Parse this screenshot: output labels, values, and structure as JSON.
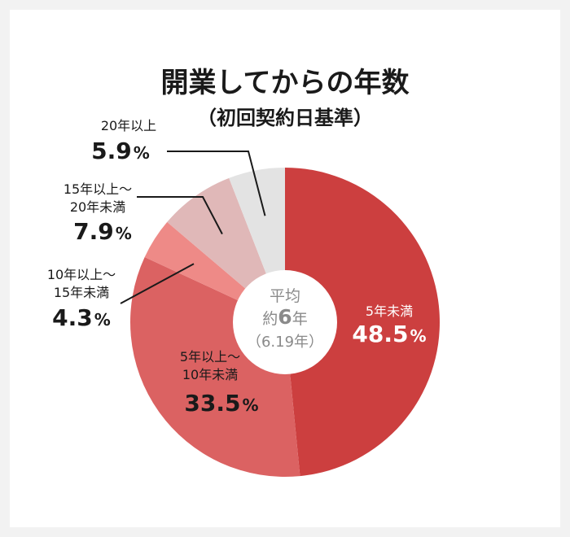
{
  "chart_data": {
    "type": "pie",
    "style": "donut",
    "title": "開業してからの年数",
    "subtitle": "（初回契約日基準）",
    "center": {
      "line1": "平均",
      "line2_prefix": "約",
      "line2_number": "6",
      "line2_suffix": "年",
      "line3": "（6.19年）"
    },
    "slices": [
      {
        "label": "5年未満",
        "label_lines": [
          "5年未満"
        ],
        "value": 48.5,
        "value_text": "48.5",
        "unit": "%",
        "color": "#cc3f3f"
      },
      {
        "label": "5年以上〜10年未満",
        "label_lines": [
          "5年以上〜",
          "10年未満"
        ],
        "value": 33.5,
        "value_text": "33.5",
        "unit": "%",
        "color": "#db6262"
      },
      {
        "label": "10年以上〜15年未満",
        "label_lines": [
          "10年以上〜",
          "15年未満"
        ],
        "value": 4.3,
        "value_text": "4.3",
        "unit": "%",
        "color": "#ee8a87"
      },
      {
        "label": "15年以上〜20年未満",
        "label_lines": [
          "15年以上〜",
          "20年未満"
        ],
        "value": 7.9,
        "value_text": "7.9",
        "unit": "%",
        "color": "#e0b8b8"
      },
      {
        "label": "20年以上",
        "label_lines": [
          "20年以上"
        ],
        "value": 5.9,
        "value_text": "5.9",
        "unit": "%",
        "color": "#e3e3e3"
      }
    ]
  }
}
